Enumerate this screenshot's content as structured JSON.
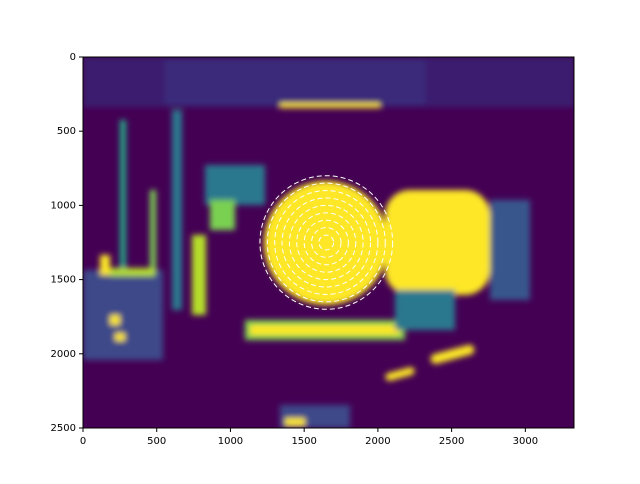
{
  "chart_data": {
    "type": "image",
    "xlim": [
      0,
      3330
    ],
    "ylim": [
      2500,
      0
    ],
    "xticks": [
      0,
      500,
      1000,
      1500,
      2000,
      2500,
      3000
    ],
    "yticks": [
      0,
      500,
      1000,
      1500,
      2000,
      2500
    ],
    "circles": {
      "center": [
        1650,
        1250
      ],
      "radii": [
        50,
        100,
        150,
        200,
        250,
        300,
        350,
        400,
        450
      ],
      "color": "#ffffff"
    }
  }
}
